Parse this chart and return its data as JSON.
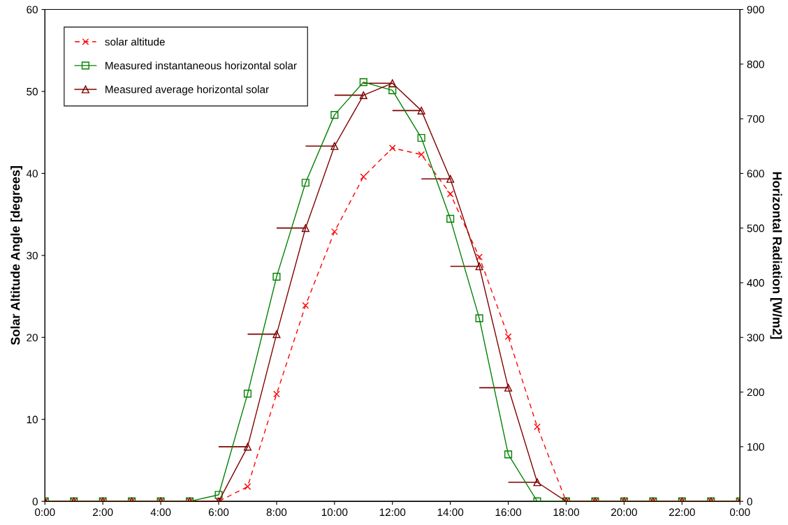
{
  "chart_data": {
    "type": "line",
    "xlabel": null,
    "ylabel": "Solar Altitude Angle [degrees]",
    "y2label": "Horizontal Radiation [W/m2]",
    "x": [
      0,
      1,
      2,
      3,
      4,
      5,
      6,
      7,
      8,
      9,
      10,
      11,
      12,
      13,
      14,
      15,
      16,
      17,
      18,
      19,
      20,
      21,
      22,
      23,
      24
    ],
    "series": [
      {
        "name": "solar altitude",
        "color": "#ff0000",
        "marker": "cross",
        "line_style": "dashed",
        "values": [
          0,
          0,
          0,
          0,
          0,
          0,
          0,
          1.8,
          13.1,
          23.9,
          32.9,
          39.6,
          43.1,
          42.3,
          37.5,
          29.8,
          20.1,
          9.1,
          0,
          0,
          0,
          0,
          0,
          0,
          0
        ]
      },
      {
        "name": "Measured instantaneous horizontal solar",
        "color": "#008000",
        "marker": "square",
        "line_style": "solid",
        "axis": "y2",
        "values": [
          0,
          0,
          0,
          0,
          0,
          0,
          12,
          197,
          411,
          583,
          707,
          767,
          752,
          665,
          517,
          335,
          86,
          0,
          0,
          0,
          0,
          0,
          0,
          0,
          0
        ]
      },
      {
        "name": "Measured average horizontal solar",
        "color": "#800000",
        "marker": "triangle",
        "line_style": "solid",
        "axis": "y2",
        "values": [
          0,
          0,
          0,
          0,
          0,
          0,
          0,
          100,
          306,
          500,
          650,
          743,
          765,
          715,
          590,
          430,
          208,
          35,
          0,
          0,
          0,
          0,
          0,
          0,
          0
        ],
        "xerrors": [
          null,
          null,
          null,
          null,
          null,
          null,
          null,
          [
            6,
            7
          ],
          [
            7,
            8
          ],
          [
            8,
            9
          ],
          [
            9,
            10
          ],
          [
            10,
            11
          ],
          [
            11,
            12
          ],
          [
            12,
            13
          ],
          [
            13,
            14
          ],
          [
            14,
            15
          ],
          [
            15,
            16
          ],
          [
            16,
            17
          ],
          null,
          null,
          null,
          null,
          null,
          null,
          null
        ]
      }
    ],
    "xlim": [
      0,
      24
    ],
    "xticks": [
      {
        "value": 0,
        "label": "0:00"
      },
      {
        "value": 2,
        "label": "2:00"
      },
      {
        "value": 4,
        "label": "4:00"
      },
      {
        "value": 6,
        "label": "6:00"
      },
      {
        "value": 8,
        "label": "8:00"
      },
      {
        "value": 10,
        "label": "10:00"
      },
      {
        "value": 12,
        "label": "12:00"
      },
      {
        "value": 14,
        "label": "14:00"
      },
      {
        "value": 16,
        "label": "16:00"
      },
      {
        "value": 18,
        "label": "18:00"
      },
      {
        "value": 20,
        "label": "20:00"
      },
      {
        "value": 22,
        "label": "22:00"
      },
      {
        "value": 24,
        "label": "0:00"
      }
    ],
    "ylim": [
      0,
      60
    ],
    "yticks": [
      0,
      10,
      20,
      30,
      40,
      50,
      60
    ],
    "y2lim": [
      0,
      900
    ],
    "y2ticks": [
      0,
      100,
      200,
      300,
      400,
      500,
      600,
      700,
      800,
      900
    ],
    "grid": false,
    "legend": "top left"
  }
}
